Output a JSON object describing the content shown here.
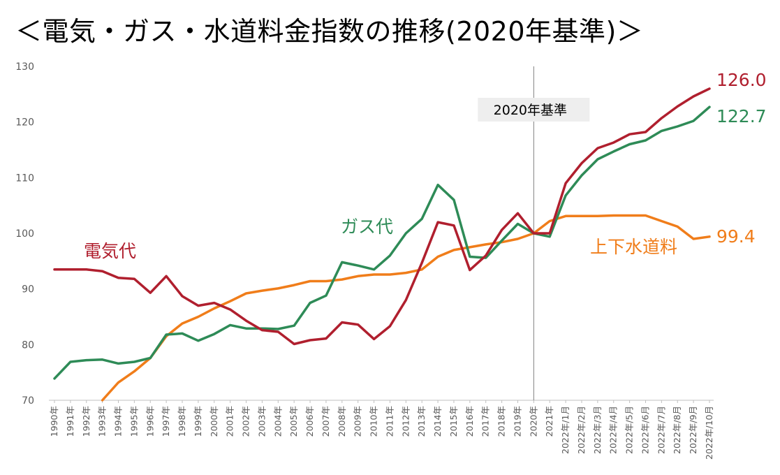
{
  "title": "＜電気・ガス・水道料金指数の推移(2020年基準)＞",
  "chart_data": {
    "type": "line",
    "title": "＜電気・ガス・水道料金指数の推移(2020年基準)＞",
    "xlabel": "",
    "ylabel": "",
    "ylim": [
      70,
      130
    ],
    "yticks": [
      "70",
      "80",
      "90",
      "100",
      "110",
      "120",
      "130"
    ],
    "grid": false,
    "categories": [
      "1990年",
      "1991年",
      "1992年",
      "1993年",
      "1994年",
      "1995年",
      "1996年",
      "1997年",
      "1998年",
      "1999年",
      "2000年",
      "2001年",
      "2002年",
      "2003年",
      "2004年",
      "2005年",
      "2006年",
      "2007年",
      "2008年",
      "2009年",
      "2010年",
      "2011年",
      "2012年",
      "2013年",
      "2014年",
      "2015年",
      "2016年",
      "2017年",
      "2018年",
      "2019年",
      "2020年",
      "2021年",
      "2022年/1月",
      "2022年/2月",
      "2022年/3月",
      "2022年/4月",
      "2022年/5月",
      "2022年/6月",
      "2022年/7月",
      "2022年/8月",
      "2022年/9月",
      "2022年/10月"
    ],
    "series": [
      {
        "name": "電気代",
        "color": "#b01f2e",
        "values": [
          93.5,
          93.5,
          93.5,
          93.2,
          92.0,
          91.8,
          89.3,
          92.3,
          88.7,
          87.0,
          87.5,
          86.3,
          84.3,
          82.6,
          82.3,
          80.1,
          80.8,
          81.1,
          84.0,
          83.6,
          81.0,
          83.3,
          88.0,
          94.7,
          102.0,
          101.4,
          93.4,
          96.0,
          100.6,
          103.6,
          100.0,
          100.0,
          109.0,
          112.6,
          115.3,
          116.3,
          117.8,
          118.2,
          120.7,
          122.8,
          124.6,
          126.0
        ],
        "end_value": "126.0"
      },
      {
        "name": "ガス代",
        "color": "#2e8b57",
        "values": [
          73.9,
          76.9,
          77.2,
          77.3,
          76.6,
          76.9,
          77.6,
          81.8,
          82.0,
          80.7,
          81.9,
          83.5,
          82.9,
          82.9,
          82.8,
          83.4,
          87.5,
          88.8,
          94.8,
          94.2,
          93.5,
          96.0,
          100.0,
          102.6,
          108.7,
          106.0,
          95.8,
          95.6,
          98.7,
          101.7,
          100.0,
          99.4,
          106.8,
          110.4,
          113.3,
          114.7,
          116.0,
          116.7,
          118.4,
          119.2,
          120.2,
          122.7
        ],
        "end_value": "122.7"
      },
      {
        "name": "上下水道料",
        "color": "#f07d1a",
        "values": [
          null,
          null,
          null,
          69.8,
          73.2,
          75.2,
          77.6,
          81.5,
          83.8,
          85.0,
          86.5,
          87.8,
          89.2,
          89.7,
          90.1,
          90.7,
          91.4,
          91.4,
          91.7,
          92.3,
          92.6,
          92.6,
          92.9,
          93.5,
          95.8,
          97.0,
          97.5,
          98.0,
          98.4,
          99.0,
          100.0,
          102.2,
          103.1,
          103.1,
          103.1,
          103.2,
          103.2,
          103.2,
          102.2,
          101.2,
          99.0,
          99.4
        ],
        "end_value": "99.4"
      }
    ],
    "annotations": [
      {
        "text": "2020年基準",
        "at_category": "2020年"
      }
    ],
    "legend": "inline"
  }
}
